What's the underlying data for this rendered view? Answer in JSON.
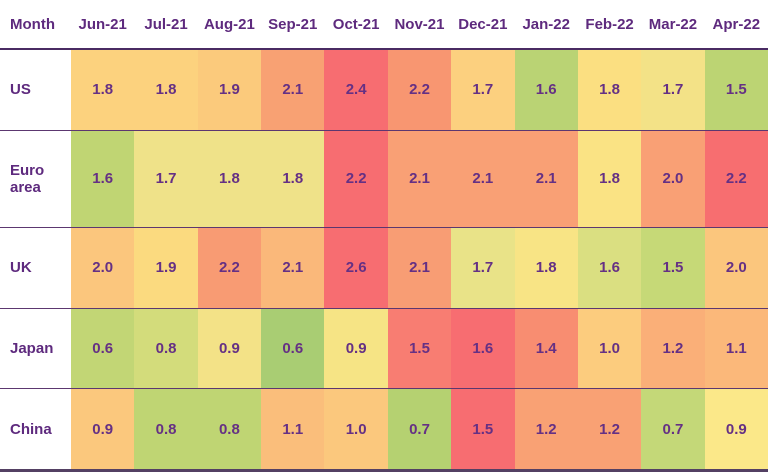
{
  "colors": {
    "background": "#FFFFFF",
    "header_text": "#5E2A7E",
    "cell_text": "#653084",
    "row_separator": "#5C3770",
    "header_separator": "#4A2B63",
    "bottom_bar": "#534063"
  },
  "chart_data": {
    "type": "heatmap",
    "title": "",
    "corner_label": "Month",
    "legend_position": "none",
    "grid": "row-separators",
    "columns": [
      "Jun-21",
      "Jul-21",
      "Aug-21",
      "Sep-21",
      "Oct-21",
      "Nov-21",
      "Dec-21",
      "Jan-22",
      "Feb-22",
      "Mar-22",
      "Apr-22"
    ],
    "color_scale": "green=low, yellow=mid, red=high, normalized per row",
    "rows": [
      {
        "label": "US",
        "values": [
          "1.8",
          "1.8",
          "1.9",
          "2.1",
          "2.4",
          "2.2",
          "1.7",
          "1.6",
          "1.8",
          "1.7",
          "1.5"
        ],
        "colors": [
          "#FCD27E",
          "#FCD27E",
          "#FBCA7C",
          "#F8A173",
          "#F76D71",
          "#F89671",
          "#FCD07F",
          "#BAD374",
          "#FBDF81",
          "#F3E287",
          "#BCD473"
        ]
      },
      {
        "label": "Euro area",
        "values": [
          "1.6",
          "1.7",
          "1.8",
          "1.8",
          "2.2",
          "2.1",
          "2.1",
          "2.1",
          "1.8",
          "2.0",
          "2.2"
        ],
        "colors": [
          "#C0D573",
          "#EFE289",
          "#EFE289",
          "#EFE289",
          "#F76D71",
          "#F9A075",
          "#F9A075",
          "#F9A075",
          "#FAE384",
          "#F9A075",
          "#F76E70"
        ]
      },
      {
        "label": "UK",
        "values": [
          "2.0",
          "1.9",
          "2.2",
          "2.1",
          "2.6",
          "2.1",
          "1.7",
          "1.8",
          "1.6",
          "1.5",
          "2.0"
        ],
        "colors": [
          "#FBC67D",
          "#FBDA7F",
          "#F89B73",
          "#FAB87A",
          "#F76D71",
          "#F89D74",
          "#E9E388",
          "#F8E485",
          "#DADF81",
          "#C6D977",
          "#FBC67D"
        ]
      },
      {
        "label": "Japan",
        "values": [
          "0.6",
          "0.8",
          "0.9",
          "0.6",
          "0.9",
          "1.5",
          "1.6",
          "1.4",
          "1.0",
          "1.2",
          "1.1"
        ],
        "colors": [
          "#C2D675",
          "#D3DC7B",
          "#F3E287",
          "#A9CD73",
          "#F6E485",
          "#F87D72",
          "#F76D71",
          "#F88D71",
          "#FCCC7E",
          "#FAAF78",
          "#FBB87A"
        ]
      },
      {
        "label": "China",
        "values": [
          "0.9",
          "0.8",
          "0.8",
          "1.1",
          "1.0",
          "0.7",
          "1.5",
          "1.2",
          "1.2",
          "0.7",
          "0.9"
        ],
        "colors": [
          "#FBC87D",
          "#BFD573",
          "#BFD573",
          "#FABE7B",
          "#FBC87D",
          "#B5D171",
          "#F76D71",
          "#F9A174",
          "#F9A174",
          "#C4D878",
          "#FBE889"
        ]
      }
    ]
  }
}
